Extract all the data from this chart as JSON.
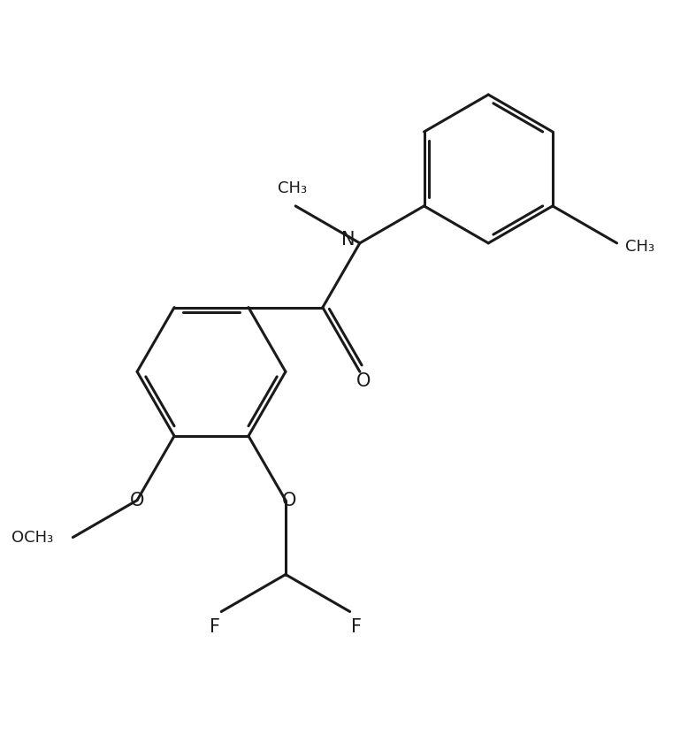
{
  "background_color": "#ffffff",
  "line_color": "#1a1a1a",
  "line_width": 2.2,
  "font_size": 14,
  "figsize": [
    7.78,
    8.48
  ],
  "dpi": 100,
  "xlim": [
    0,
    10
  ],
  "ylim": [
    0,
    10.9
  ]
}
